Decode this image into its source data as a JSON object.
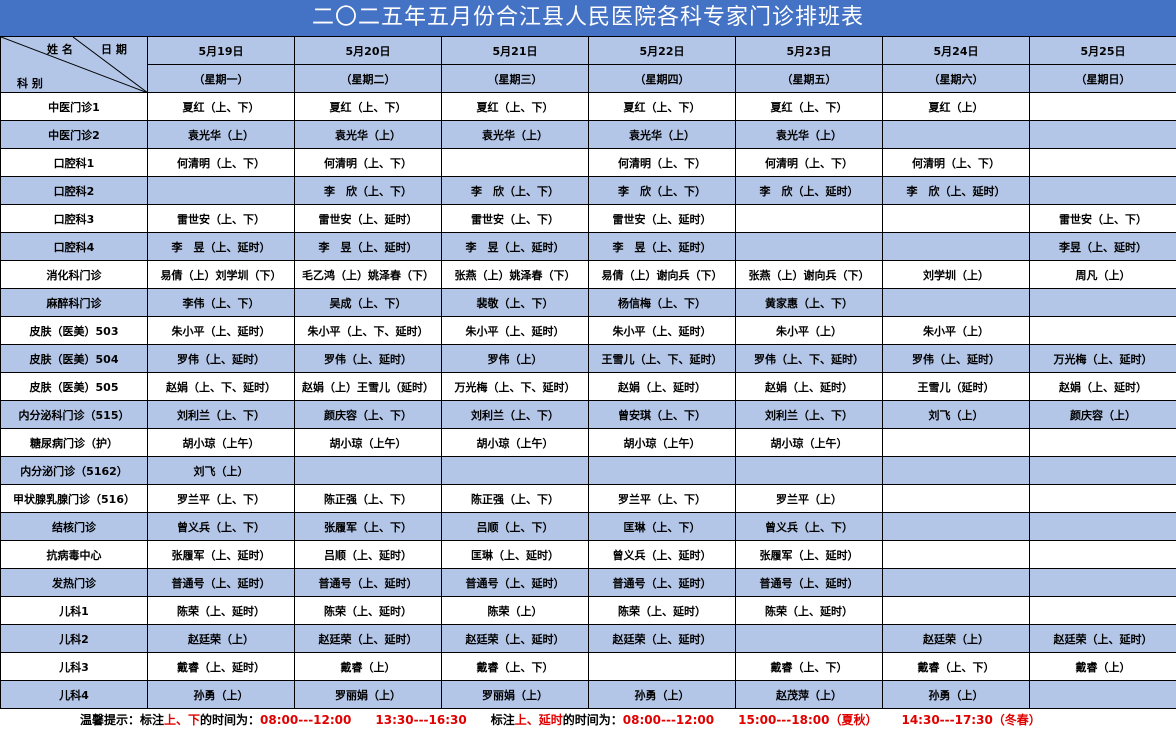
{
  "title": "二〇二五年五月份合江县人民医院各科专家门诊排班表",
  "corner": {
    "name": "姓 名",
    "date": "日 期",
    "dept": "科 别"
  },
  "dates": [
    "5月19日",
    "5月20日",
    "5月21日",
    "5月22日",
    "5月23日",
    "5月24日",
    "5月25日"
  ],
  "weekdays": [
    "（星期一）",
    "（星期二）",
    "（星期三）",
    "（星期四）",
    "（星期五）",
    "（星期六）",
    "（星期日）"
  ],
  "rows": [
    {
      "dept": "中医门诊1",
      "cells": [
        "夏红（上、下）",
        "夏红（上、下）",
        "夏红（上、下）",
        "夏红（上、下）",
        "夏红（上、下）",
        "夏红（上）",
        ""
      ]
    },
    {
      "dept": "中医门诊2",
      "cells": [
        "袁光华（上）",
        "袁光华（上）",
        "袁光华（上）",
        "袁光华（上）",
        "袁光华（上）",
        "",
        ""
      ]
    },
    {
      "dept": "口腔科1",
      "cells": [
        "何清明（上、下）",
        "何清明（上、下）",
        "",
        "何清明（上、下）",
        "何清明（上、下）",
        "何清明（上、下）",
        ""
      ]
    },
    {
      "dept": "口腔科2",
      "cells": [
        "",
        "李　欣（上、下）",
        "李　欣（上、下）",
        "李　欣（上、下）",
        "李　欣（上、延时）",
        "李　欣（上、延时）",
        ""
      ]
    },
    {
      "dept": "口腔科3",
      "cells": [
        "雷世安（上、下）",
        "雷世安（上、延时）",
        "雷世安（上、下）",
        "雷世安（上、延时）",
        "",
        "",
        "雷世安（上、下）"
      ]
    },
    {
      "dept": "口腔科4",
      "cells": [
        "李　昱（上、延时）",
        "李　昱（上、延时）",
        "李　昱（上、延时）",
        "李　昱（上、延时）",
        "",
        "",
        "李昱（上、延时）"
      ]
    },
    {
      "dept": "消化科门诊",
      "cells": [
        "易倩（上）刘学圳（下）",
        "毛乙鸿（上）姚泽春（下）",
        "张燕（上）姚泽春（下）",
        "易倩（上）谢向兵（下）",
        "张燕（上）谢向兵（下）",
        "刘学圳（上）",
        "周凡（上）"
      ]
    },
    {
      "dept": "麻醉科门诊",
      "cells": [
        "李伟（上、下）",
        "吴成（上、下）",
        "裴敬（上、下）",
        "杨信梅（上、下）",
        "黄家惠（上、下）",
        "",
        ""
      ]
    },
    {
      "dept": "皮肤（医美）503",
      "cells": [
        "朱小平（上、延时）",
        "朱小平（上、下、延时）",
        "朱小平（上、延时）",
        "朱小平（上、延时）",
        "朱小平（上）",
        "朱小平（上）",
        ""
      ]
    },
    {
      "dept": "皮肤（医美）504",
      "cells": [
        "罗伟（上、延时）",
        "罗伟（上、延时）",
        "罗伟（上）",
        "王雪儿（上、下、延时）",
        "罗伟（上、下、延时）",
        "罗伟（上、延时）",
        "万光梅（上、延时）"
      ]
    },
    {
      "dept": "皮肤（医美）505",
      "cells": [
        "赵娟（上、下、延时）",
        "赵娟（上）王雪儿（延时）",
        "万光梅（上、下、延时）",
        "赵娟（上、延时）",
        "赵娟（上、延时）",
        "王雪儿（延时）",
        "赵娟（上、延时）"
      ]
    },
    {
      "dept": "内分泌科门诊（515）",
      "cells": [
        "刘利兰（上、下）",
        "颜庆容（上、下）",
        "刘利兰（上、下）",
        "曾安琪（上、下）",
        "刘利兰（上、下）",
        "刘飞（上）",
        "颜庆容（上）"
      ]
    },
    {
      "dept": "糖尿病门诊（护）",
      "cells": [
        "胡小琼（上午）",
        "胡小琼（上午）",
        "胡小琼（上午）",
        "胡小琼（上午）",
        "胡小琼（上午）",
        "",
        ""
      ]
    },
    {
      "dept": "内分泌门诊（5162）",
      "cells": [
        "刘飞（上）",
        "",
        "",
        "",
        "",
        "",
        ""
      ]
    },
    {
      "dept": "甲状腺乳腺门诊（516）",
      "cells": [
        "罗兰平（上、下）",
        "陈正强（上、下）",
        "陈正强（上、下）",
        "罗兰平（上、下）",
        "罗兰平（上）",
        "",
        ""
      ]
    },
    {
      "dept": "结核门诊",
      "cells": [
        "曾义兵（上、下）",
        "张履军（上、下）",
        "吕顺（上、下）",
        "匡琳（上、下）",
        "曾义兵（上、下）",
        "",
        ""
      ]
    },
    {
      "dept": "抗病毒中心",
      "cells": [
        "张履军（上、延时）",
        "吕顺（上、延时）",
        "匡琳（上、延时）",
        "曾义兵（上、延时）",
        "张履军（上、延时）",
        "",
        ""
      ]
    },
    {
      "dept": "发热门诊",
      "cells": [
        "普通号（上、延时）",
        "普通号（上、延时）",
        "普通号（上、延时）",
        "普通号（上、延时）",
        "普通号（上、延时）",
        "",
        ""
      ]
    },
    {
      "dept": "儿科1",
      "cells": [
        "陈荣（上、延时）",
        "陈荣（上、延时）",
        "陈荣（上）",
        "陈荣（上、延时）",
        "陈荣（上、延时）",
        "",
        ""
      ]
    },
    {
      "dept": "儿科2",
      "cells": [
        "赵廷荣（上）",
        "赵廷荣（上、延时）",
        "赵廷荣（上、延时）",
        "赵廷荣（上、延时）",
        "",
        "赵廷荣（上）",
        "赵廷荣（上、延时）"
      ]
    },
    {
      "dept": "儿科3",
      "cells": [
        "戴睿（上、延时）",
        "戴睿（上）",
        "戴睿（上、下）",
        "",
        "戴睿（上、下）",
        "戴睿（上、下）",
        "戴睿（上）"
      ]
    },
    {
      "dept": "儿科4",
      "cells": [
        "孙勇（上）",
        "罗丽娟（上）",
        "罗丽娟（上）",
        "孙勇（上）",
        "赵茂萍（上）",
        "孙勇（上）",
        ""
      ]
    }
  ],
  "footer": {
    "prefix": "温馨提示：标注",
    "mark1": "上、下",
    "mid1": "的时间为：",
    "t1a": "08:00---12:00",
    "t1b": "13:30---16:30",
    "prefix2": "标注",
    "mark2": "上、延时",
    "mid2": "的时间为：",
    "t2a": "08:00---12:00",
    "t2b": "15:00---18:00（夏秋）",
    "t2c": "14:30---17:30（冬春）"
  },
  "colors": {
    "title_bg": "#4472c4",
    "band": "#b4c6e7",
    "highlight": "#e00000"
  }
}
